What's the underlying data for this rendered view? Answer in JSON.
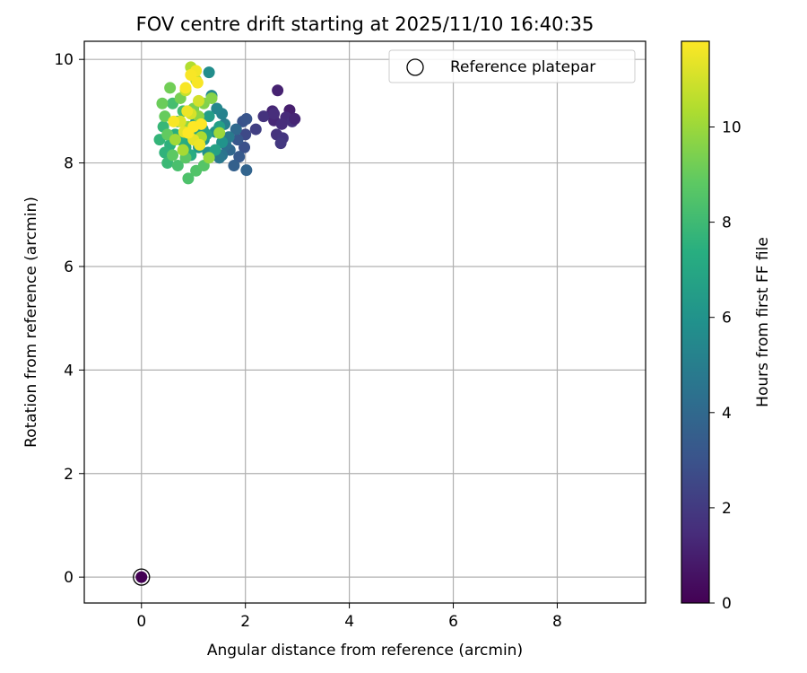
{
  "chart_data": {
    "type": "scatter",
    "title": "FOV centre drift starting at 2025/11/10 16:40:35",
    "xlabel": "Angular distance from reference (arcmin)",
    "ylabel": "Rotation from reference (arcmin)",
    "xlim": [
      -1.1,
      9.7
    ],
    "ylim": [
      -0.5,
      10.35
    ],
    "xticks": [
      0,
      2,
      4,
      6,
      8
    ],
    "yticks": [
      0,
      2,
      4,
      6,
      8,
      10
    ],
    "grid": true,
    "legend": {
      "placement": "top-right",
      "entries": [
        "Reference platepar"
      ]
    },
    "reference_point": {
      "x": 0,
      "y": 0
    },
    "colorbar": {
      "label": "Hours from first FF file",
      "colormap": "viridis",
      "range": [
        0,
        11.8
      ],
      "ticks": [
        0,
        2,
        4,
        6,
        8,
        10
      ]
    },
    "series": [
      {
        "points": [
          [
            0.0,
            0.0,
            0.0
          ],
          [
            2.62,
            9.4,
            1.1
          ],
          [
            2.52,
            9.0,
            1.2
          ],
          [
            2.55,
            8.82,
            1.3
          ],
          [
            2.85,
            9.02,
            1.0
          ],
          [
            2.78,
            8.88,
            1.4
          ],
          [
            2.7,
            8.75,
            1.5
          ],
          [
            2.9,
            8.8,
            1.6
          ],
          [
            2.6,
            8.55,
            1.7
          ],
          [
            2.72,
            8.48,
            1.8
          ],
          [
            2.68,
            8.38,
            1.9
          ],
          [
            2.35,
            8.9,
            1.7
          ],
          [
            2.2,
            8.65,
            2.2
          ],
          [
            2.55,
            8.95,
            1.5
          ],
          [
            2.95,
            8.85,
            1.2
          ],
          [
            2.0,
            8.55,
            2.6
          ],
          [
            1.98,
            8.3,
            2.9
          ],
          [
            1.95,
            8.8,
            3.0
          ],
          [
            2.02,
            8.85,
            3.1
          ],
          [
            1.85,
            8.45,
            3.2
          ],
          [
            1.88,
            8.12,
            3.3
          ],
          [
            1.78,
            7.95,
            3.6
          ],
          [
            2.02,
            7.86,
            3.8
          ],
          [
            1.7,
            8.25,
            3.9
          ],
          [
            1.82,
            8.65,
            4.0
          ],
          [
            1.62,
            8.35,
            4.3
          ],
          [
            1.55,
            8.15,
            4.5
          ],
          [
            1.5,
            8.1,
            4.7
          ],
          [
            1.68,
            8.5,
            4.8
          ],
          [
            1.6,
            8.75,
            5.0
          ],
          [
            1.55,
            8.95,
            5.2
          ],
          [
            1.45,
            9.05,
            5.4
          ],
          [
            1.35,
            9.3,
            5.5
          ],
          [
            1.3,
            9.75,
            5.7
          ],
          [
            1.28,
            8.2,
            5.8
          ],
          [
            1.42,
            8.6,
            5.9
          ],
          [
            1.55,
            8.4,
            6.0
          ],
          [
            1.2,
            8.45,
            6.1
          ],
          [
            1.1,
            8.3,
            6.2
          ],
          [
            1.05,
            8.8,
            6.3
          ],
          [
            1.18,
            8.65,
            6.4
          ],
          [
            1.3,
            8.9,
            6.5
          ],
          [
            1.5,
            8.7,
            6.6
          ],
          [
            1.42,
            8.25,
            6.7
          ],
          [
            1.25,
            8.55,
            6.8
          ],
          [
            1.0,
            8.6,
            6.9
          ],
          [
            0.9,
            8.45,
            7.0
          ],
          [
            0.85,
            8.3,
            7.1
          ],
          [
            0.95,
            8.15,
            7.2
          ],
          [
            0.75,
            8.45,
            7.3
          ],
          [
            0.65,
            8.55,
            7.4
          ],
          [
            0.55,
            8.35,
            7.5
          ],
          [
            0.45,
            8.2,
            7.6
          ],
          [
            0.35,
            8.45,
            7.7
          ],
          [
            0.42,
            8.7,
            7.8
          ],
          [
            0.5,
            8.0,
            7.9
          ],
          [
            0.7,
            8.8,
            8.0
          ],
          [
            0.8,
            9.0,
            8.1
          ],
          [
            0.6,
            9.15,
            8.2
          ],
          [
            0.7,
            7.95,
            8.3
          ],
          [
            0.9,
            7.7,
            8.4
          ],
          [
            1.05,
            7.85,
            8.5
          ],
          [
            1.2,
            7.95,
            8.6
          ],
          [
            0.85,
            8.1,
            8.7
          ],
          [
            0.6,
            8.15,
            8.8
          ],
          [
            0.5,
            8.55,
            8.9
          ],
          [
            0.45,
            8.9,
            9.0
          ],
          [
            0.4,
            9.15,
            9.1
          ],
          [
            0.55,
            9.45,
            9.2
          ],
          [
            0.75,
            9.25,
            9.3
          ],
          [
            1.0,
            9.05,
            9.4
          ],
          [
            1.2,
            9.15,
            9.5
          ],
          [
            1.35,
            9.25,
            9.6
          ],
          [
            1.1,
            8.9,
            9.7
          ],
          [
            0.9,
            8.7,
            9.8
          ],
          [
            1.3,
            8.1,
            9.9
          ],
          [
            1.5,
            8.58,
            10.0
          ],
          [
            0.65,
            8.45,
            10.1
          ],
          [
            0.8,
            8.25,
            10.2
          ],
          [
            1.15,
            8.5,
            10.3
          ],
          [
            0.95,
            9.85,
            10.4
          ],
          [
            1.05,
            9.6,
            10.6
          ],
          [
            0.85,
            9.4,
            10.8
          ],
          [
            1.1,
            9.2,
            11.0
          ],
          [
            0.95,
            8.95,
            11.1
          ],
          [
            0.75,
            8.8,
            11.2
          ],
          [
            0.82,
            8.6,
            11.3
          ],
          [
            1.0,
            8.45,
            11.4
          ],
          [
            1.12,
            8.35,
            11.5
          ],
          [
            0.88,
            9.0,
            11.5
          ],
          [
            1.05,
            9.78,
            11.6
          ],
          [
            0.95,
            9.7,
            11.7
          ],
          [
            1.08,
            9.55,
            11.7
          ],
          [
            0.85,
            9.45,
            11.7
          ],
          [
            0.62,
            8.8,
            11.7
          ],
          [
            1.0,
            8.7,
            11.8
          ],
          [
            0.9,
            8.58,
            11.8
          ],
          [
            1.15,
            8.75,
            11.8
          ]
        ]
      }
    ]
  }
}
